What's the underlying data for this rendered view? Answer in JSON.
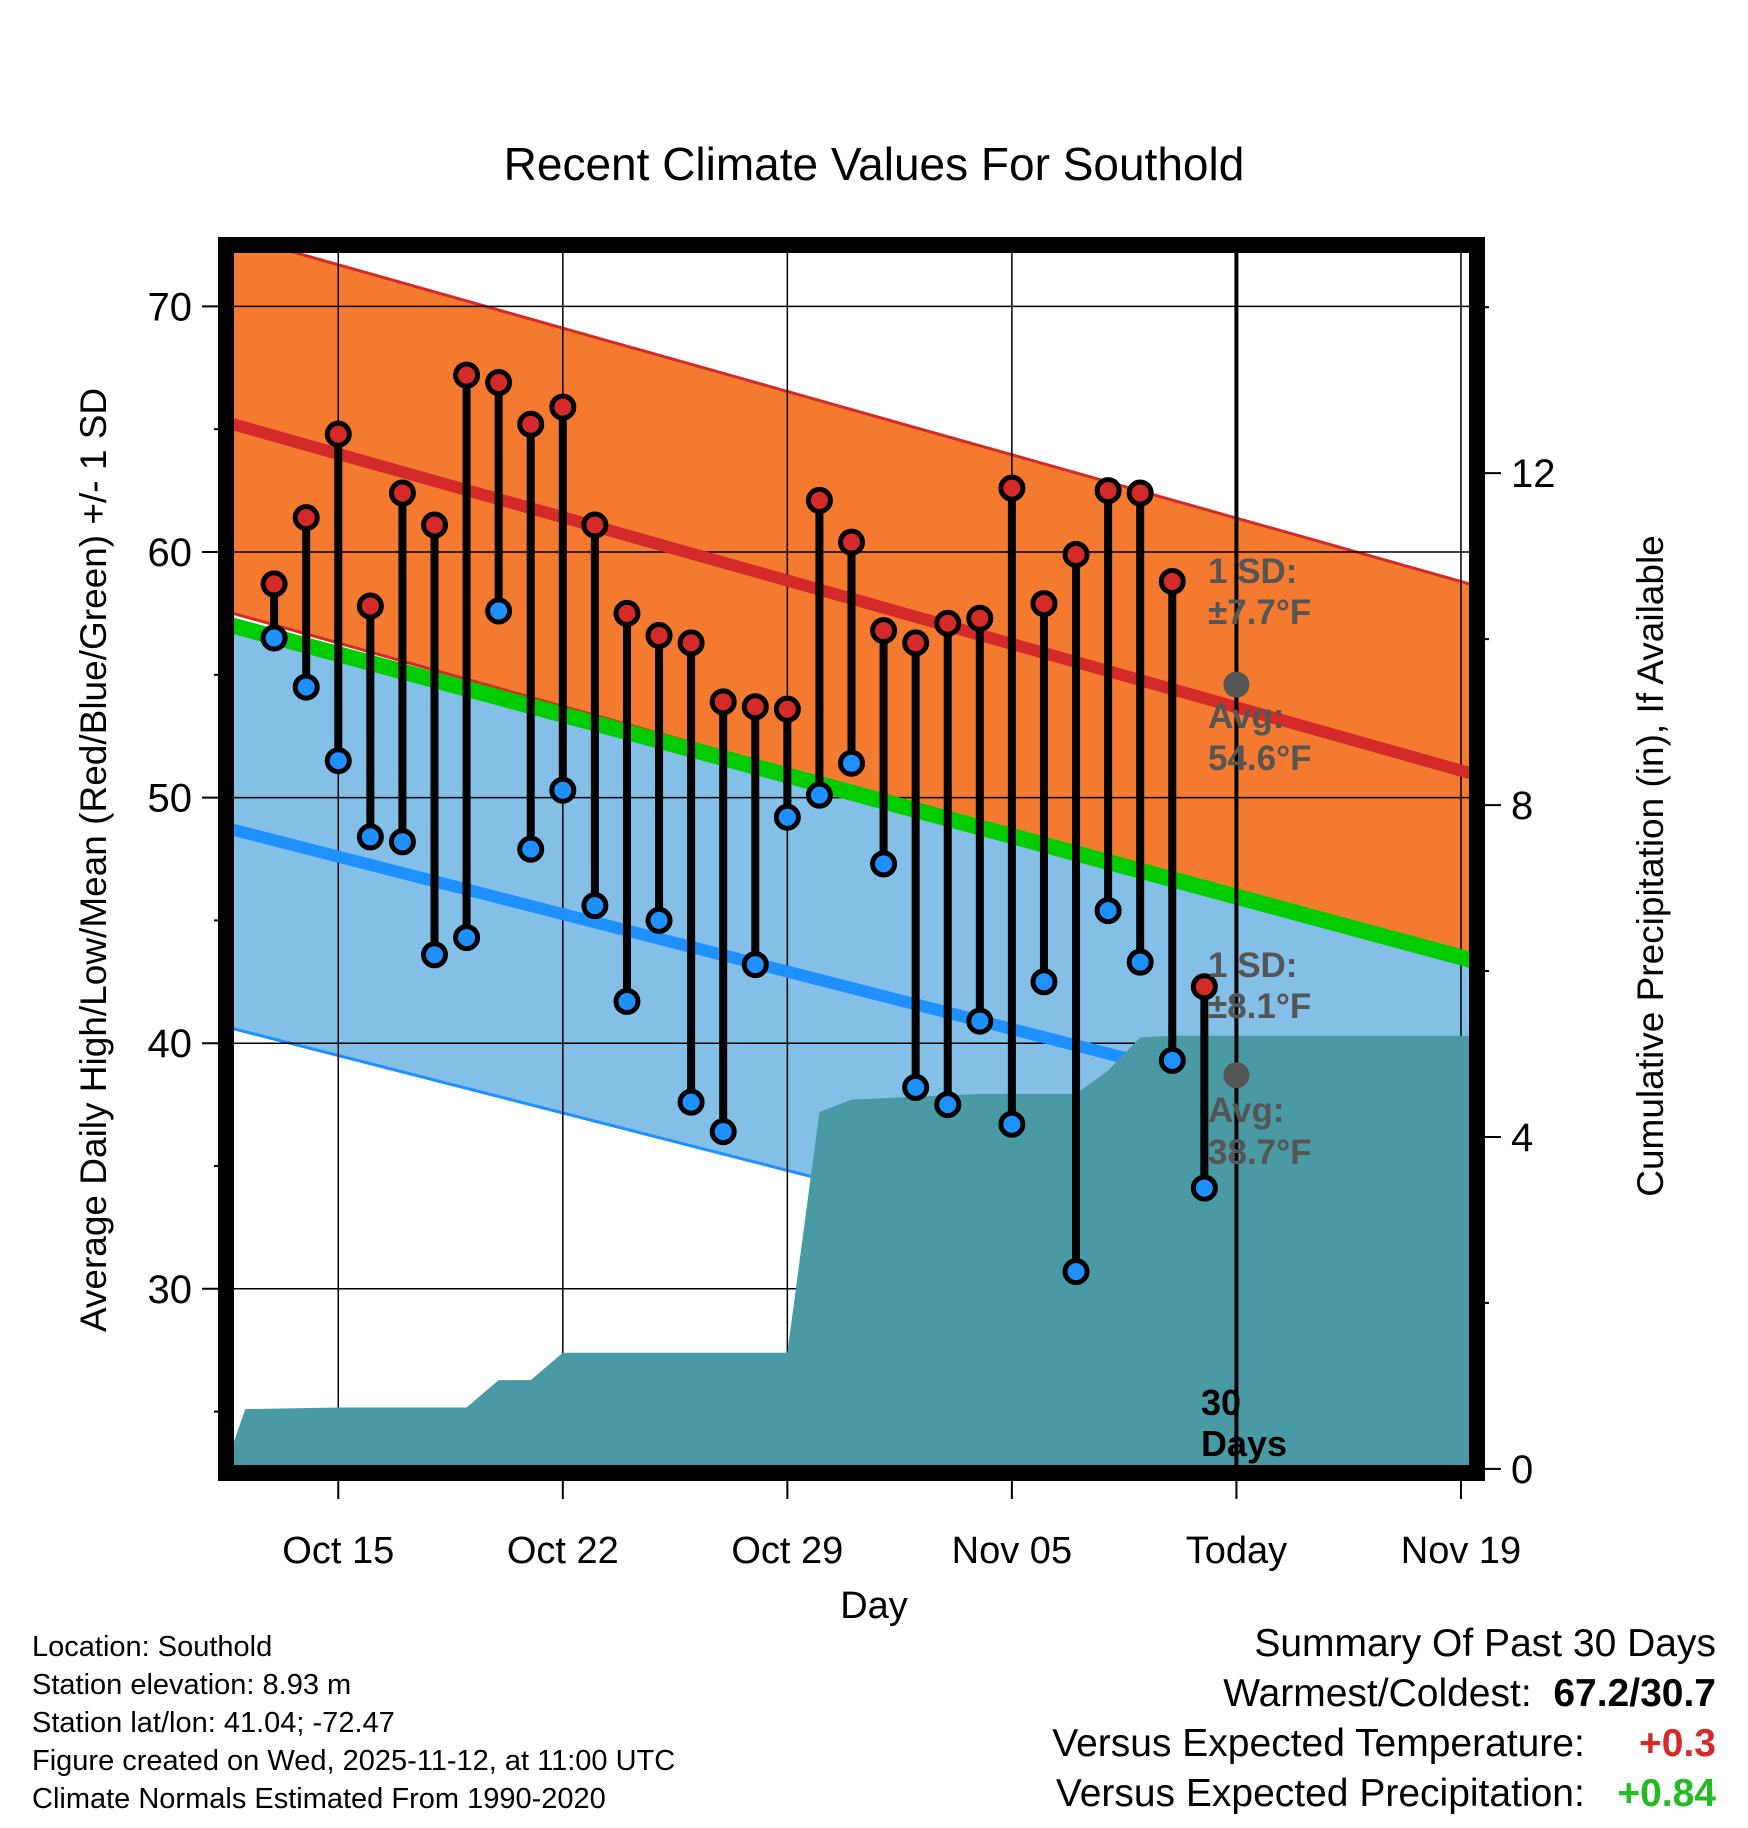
{
  "chart_data": {
    "type": "line",
    "title": "Recent Climate Values For Southold",
    "xlabel": "Day",
    "ylabel": "Average Daily High/Low/Mean (Red/Blue/Green) +/- 1 SD",
    "y2label": "Cumulative Precipitation (in), If Available",
    "x_range": [
      -3.5,
      35.5
    ],
    "ylim": [
      22.5,
      72.5
    ],
    "y2lim": [
      -0.05,
      14.75
    ],
    "yticks": [
      30,
      40,
      50,
      60,
      70
    ],
    "y2ticks": [
      0,
      4,
      8,
      12
    ],
    "xticks": [
      {
        "x": 0,
        "label": "Oct 15"
      },
      {
        "x": 7,
        "label": "Oct 22"
      },
      {
        "x": 14,
        "label": "Oct 29"
      },
      {
        "x": 21,
        "label": "Nov 05"
      },
      {
        "x": 28,
        "label": "Today"
      },
      {
        "x": 35,
        "label": "Nov 19"
      }
    ],
    "normals": {
      "high": {
        "x": [
          -3,
          35
        ],
        "mean": [
          65.1,
          51.1
        ],
        "sd": 7.7,
        "color": "#d42a2a",
        "fill": "#f47a30"
      },
      "low": {
        "x": [
          -3,
          35
        ],
        "mean": [
          48.6,
          35.9
        ],
        "sd": 8.1,
        "color": "#1e90ff",
        "fill": "#83bfe6"
      },
      "mean": {
        "x": [
          -3,
          35
        ],
        "values": [
          56.9,
          43.5
        ],
        "color": "#00cc00"
      }
    },
    "series": [
      {
        "name": "High",
        "color": "#d42a2a",
        "x": [
          -2,
          -1,
          0,
          1,
          2,
          3,
          4,
          5,
          6,
          7,
          8,
          9,
          10,
          11,
          12,
          13,
          14,
          15,
          16,
          17,
          18,
          19,
          20,
          21,
          22,
          23,
          24,
          25,
          26,
          27
        ],
        "values": [
          58.7,
          61.4,
          64.8,
          57.8,
          62.4,
          61.1,
          67.2,
          66.9,
          65.2,
          65.9,
          61.1,
          57.5,
          56.6,
          56.3,
          53.9,
          53.7,
          53.6,
          62.1,
          60.4,
          56.8,
          56.3,
          57.1,
          57.3,
          62.6,
          57.9,
          59.9,
          62.5,
          62.4,
          58.8,
          42.3
        ]
      },
      {
        "name": "Low",
        "color": "#1e90ff",
        "x": [
          -2,
          -1,
          0,
          1,
          2,
          3,
          4,
          5,
          6,
          7,
          8,
          9,
          10,
          11,
          12,
          13,
          14,
          15,
          16,
          17,
          18,
          19,
          20,
          21,
          22,
          23,
          24,
          25,
          26,
          27
        ],
        "values": [
          56.5,
          54.5,
          51.5,
          48.4,
          48.2,
          43.6,
          44.3,
          57.6,
          47.9,
          50.3,
          45.6,
          41.7,
          45.0,
          37.6,
          36.4,
          43.2,
          49.2,
          50.1,
          51.4,
          47.3,
          38.2,
          37.5,
          40.9,
          36.7,
          42.5,
          30.7,
          45.4,
          43.3,
          39.3,
          34.1
        ]
      }
    ],
    "precipitation": {
      "x": [
        -3.5,
        -2.9,
        0,
        4,
        5,
        6,
        7,
        14,
        15,
        16,
        20,
        23,
        24,
        25,
        26,
        27,
        35.5
      ],
      "values": [
        0.05,
        0.72,
        0.74,
        0.74,
        1.07,
        1.07,
        1.4,
        1.4,
        4.3,
        4.45,
        4.52,
        4.52,
        4.8,
        5.2,
        5.22,
        5.22,
        5.22
      ],
      "color": "#4a9aa5"
    },
    "today_x": 28,
    "annotations": {
      "high_sd_label": "1 SD:",
      "high_sd_value": "±7.7°F",
      "high_avg_label": "Avg:",
      "high_avg_value": "54.6°F",
      "low_sd_label": "1 SD:",
      "low_sd_value": "±8.1°F",
      "low_avg_label": "Avg:",
      "low_avg_value": "38.7°F",
      "days_num": "30",
      "days_word": "Days",
      "today_high_avg": 54.6,
      "today_low_avg": 38.7
    }
  },
  "location_info": {
    "location": "Location: Southold",
    "elevation": "Station elevation: 8.93 m",
    "latlon": "Station lat/lon: 41.04; -72.47",
    "created": "Figure created on Wed, 2025-11-12, at 11:00 UTC",
    "normals": "Climate Normals Estimated From 1990-2020"
  },
  "summary": {
    "title": "Summary Of Past 30 Days",
    "warm_cold_label": "Warmest/Coldest:",
    "warm_cold_value": "67.2/30.7",
    "temp_label": "Versus Expected Temperature:",
    "temp_value": "+0.3",
    "temp_color": "#d42a2a",
    "precip_label": "Versus Expected Precipitation:",
    "precip_value": "+0.84",
    "precip_color": "#22bb22"
  }
}
